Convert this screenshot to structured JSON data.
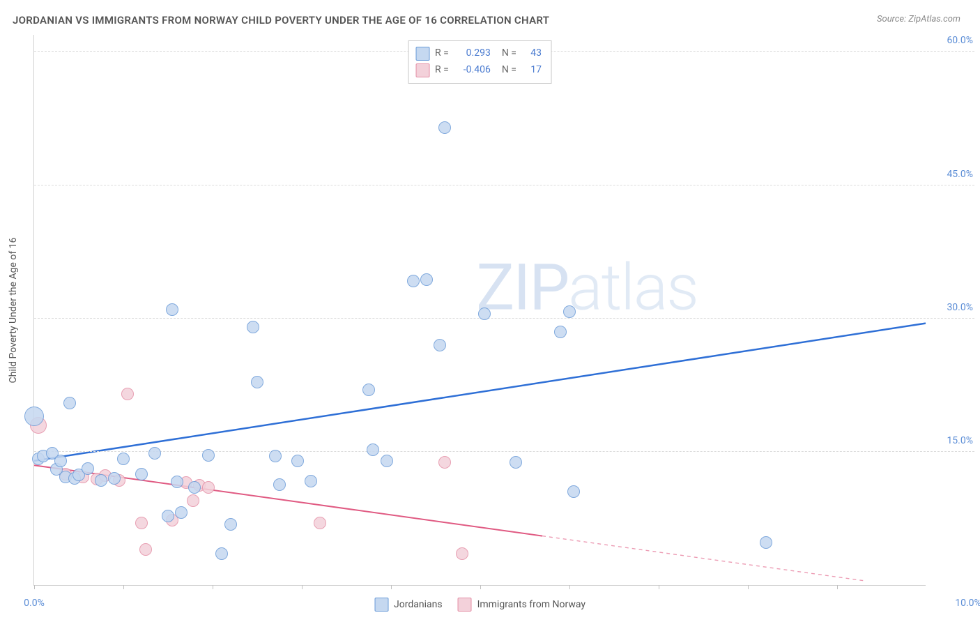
{
  "title": "JORDANIAN VS IMMIGRANTS FROM NORWAY CHILD POVERTY UNDER THE AGE OF 16 CORRELATION CHART",
  "source": "Source: ZipAtlas.com",
  "watermark_bold": "ZIP",
  "watermark_thin": "atlas",
  "yaxis_title": "Child Poverty Under the Age of 16",
  "chart": {
    "type": "scatter",
    "background_color": "#ffffff",
    "grid_color": "#dcdcdc",
    "axis_color": "#d0d0d0",
    "label_color": "#5b8dd6",
    "text_color": "#555555",
    "xlim": [
      0,
      10
    ],
    "ylim": [
      0,
      62
    ],
    "yticks": [
      15,
      30,
      45,
      60
    ],
    "ytick_labels": [
      "15.0%",
      "30.0%",
      "45.0%",
      "60.0%"
    ],
    "xticks": [
      0,
      1,
      2,
      3,
      4,
      5,
      6,
      7,
      8,
      9
    ],
    "xaxis_end_labels": {
      "left": "0.0%",
      "right": "10.0%"
    },
    "point_radius": 9,
    "point_border_width": 1.5,
    "series": {
      "jordanians": {
        "label": "Jordanians",
        "fill": "#c5d8f0",
        "stroke": "#6a9bd8",
        "trend_color": "#2e6fd6",
        "trend_width": 2.5,
        "trend": {
          "x1": 0,
          "y1": 14.0,
          "x2": 10,
          "y2": 29.5,
          "dash_from_x": null
        },
        "R": "0.293",
        "N": "43",
        "points": [
          {
            "x": 0.0,
            "y": 19.0,
            "r": 14
          },
          {
            "x": 0.05,
            "y": 14.2
          },
          {
            "x": 0.1,
            "y": 14.5
          },
          {
            "x": 0.2,
            "y": 14.8
          },
          {
            "x": 0.25,
            "y": 13.0
          },
          {
            "x": 0.3,
            "y": 14.0
          },
          {
            "x": 0.35,
            "y": 12.2
          },
          {
            "x": 0.4,
            "y": 20.5
          },
          {
            "x": 0.45,
            "y": 12.0
          },
          {
            "x": 0.5,
            "y": 12.4
          },
          {
            "x": 0.6,
            "y": 13.1
          },
          {
            "x": 0.75,
            "y": 11.8
          },
          {
            "x": 0.9,
            "y": 12.0
          },
          {
            "x": 1.0,
            "y": 14.2
          },
          {
            "x": 1.2,
            "y": 12.5
          },
          {
            "x": 1.35,
            "y": 14.8
          },
          {
            "x": 1.5,
            "y": 7.8
          },
          {
            "x": 1.55,
            "y": 31.0
          },
          {
            "x": 1.6,
            "y": 11.6
          },
          {
            "x": 1.65,
            "y": 8.2
          },
          {
            "x": 1.8,
            "y": 11.0
          },
          {
            "x": 1.95,
            "y": 14.6
          },
          {
            "x": 2.1,
            "y": 3.5
          },
          {
            "x": 2.2,
            "y": 6.8
          },
          {
            "x": 2.45,
            "y": 29.0
          },
          {
            "x": 2.5,
            "y": 22.8
          },
          {
            "x": 2.7,
            "y": 14.5
          },
          {
            "x": 2.75,
            "y": 11.3
          },
          {
            "x": 2.95,
            "y": 14.0
          },
          {
            "x": 3.1,
            "y": 11.7
          },
          {
            "x": 3.75,
            "y": 22.0
          },
          {
            "x": 3.8,
            "y": 15.2
          },
          {
            "x": 3.95,
            "y": 14.0
          },
          {
            "x": 4.25,
            "y": 34.2
          },
          {
            "x": 4.4,
            "y": 34.4
          },
          {
            "x": 4.55,
            "y": 27.0
          },
          {
            "x": 4.6,
            "y": 51.5
          },
          {
            "x": 5.05,
            "y": 30.5
          },
          {
            "x": 5.4,
            "y": 13.8
          },
          {
            "x": 5.9,
            "y": 28.5
          },
          {
            "x": 6.0,
            "y": 30.8
          },
          {
            "x": 6.05,
            "y": 10.5
          },
          {
            "x": 8.2,
            "y": 4.8
          }
        ]
      },
      "norway": {
        "label": "Immigrants from Norway",
        "fill": "#f3d1da",
        "stroke": "#e48fa6",
        "trend_color": "#e05a82",
        "trend_width": 2,
        "trend": {
          "x1": 0,
          "y1": 13.5,
          "x2": 9.3,
          "y2": 0.5,
          "dash_from_x": 5.7
        },
        "R": "-0.406",
        "N": "17",
        "points": [
          {
            "x": 0.05,
            "y": 18.0,
            "r": 12
          },
          {
            "x": 0.35,
            "y": 12.5
          },
          {
            "x": 0.55,
            "y": 12.2
          },
          {
            "x": 0.7,
            "y": 11.9
          },
          {
            "x": 0.8,
            "y": 12.3
          },
          {
            "x": 0.95,
            "y": 11.8
          },
          {
            "x": 1.05,
            "y": 21.5
          },
          {
            "x": 1.2,
            "y": 7.0
          },
          {
            "x": 1.25,
            "y": 4.0
          },
          {
            "x": 1.55,
            "y": 7.3
          },
          {
            "x": 1.7,
            "y": 11.5
          },
          {
            "x": 1.78,
            "y": 9.5
          },
          {
            "x": 1.85,
            "y": 11.2
          },
          {
            "x": 1.95,
            "y": 11.0
          },
          {
            "x": 3.2,
            "y": 7.0
          },
          {
            "x": 4.6,
            "y": 13.8
          },
          {
            "x": 4.8,
            "y": 3.5
          }
        ]
      }
    },
    "corr_box": {
      "rows": [
        {
          "series": "jordanians",
          "R_label": "R =",
          "N_label": "N ="
        },
        {
          "series": "norway",
          "R_label": "R =",
          "N_label": "N ="
        }
      ]
    },
    "legend": [
      "jordanians",
      "norway"
    ]
  }
}
